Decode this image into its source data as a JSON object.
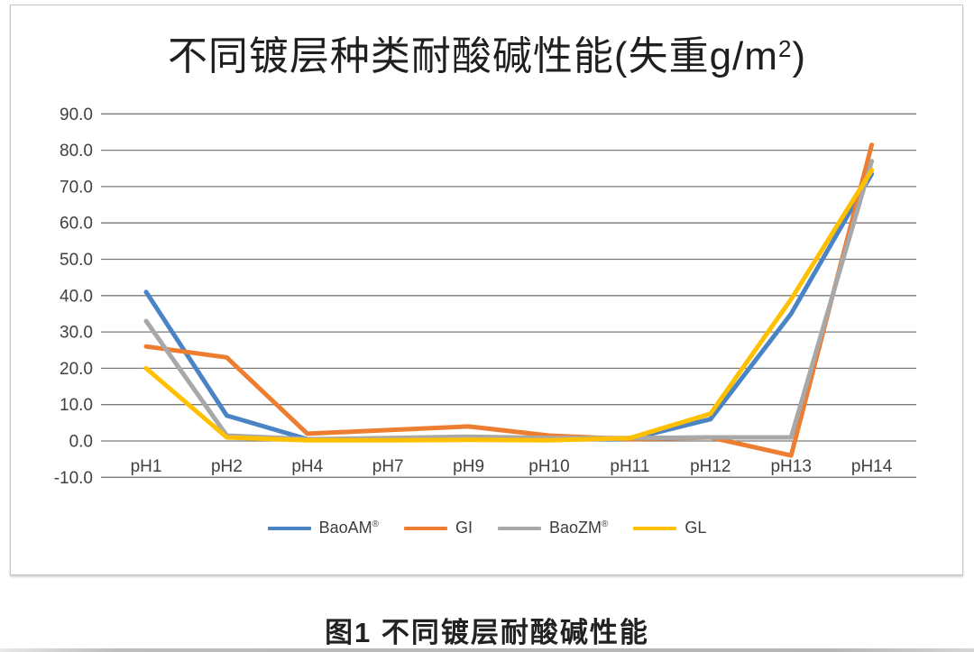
{
  "caption": "图1 不同镀层耐酸碱性能",
  "chart_data": {
    "type": "line",
    "title": "不同镀层种类耐酸碱性能(失重g/m²)",
    "title_parts": {
      "main": "不同镀层种类耐酸碱性能(失重g/m",
      "sup": "2",
      "close": ")"
    },
    "categories": [
      "pH1",
      "pH2",
      "pH4",
      "pH7",
      "pH9",
      "pH10",
      "pH11",
      "pH12",
      "pH13",
      "pH14"
    ],
    "series": [
      {
        "name": "BaoAM®",
        "label_main": "BaoAM",
        "label_sup": "®",
        "color": "#4B84C4",
        "values": [
          41,
          7,
          0.5,
          0.5,
          0.8,
          0.5,
          0.5,
          6,
          35,
          73.5
        ]
      },
      {
        "name": "GI",
        "label_main": "GI",
        "label_sup": "",
        "color": "#ED7D31",
        "values": [
          26,
          23,
          2,
          3,
          4,
          1.5,
          0.5,
          1,
          -4,
          81.5
        ]
      },
      {
        "name": "BaoZM®",
        "label_main": "BaoZM",
        "label_sup": "®",
        "color": "#A8A8A8",
        "values": [
          33,
          1.5,
          0.5,
          0.8,
          1.2,
          0.8,
          0.8,
          1,
          1,
          77
        ]
      },
      {
        "name": "GL",
        "label_main": "GL",
        "label_sup": "",
        "color": "#FFC000",
        "values": [
          20,
          1,
          0.2,
          0.2,
          0.3,
          0.2,
          0.8,
          7.5,
          39,
          74.5
        ]
      }
    ],
    "ylim": [
      -10,
      90
    ],
    "ytick_step": 10,
    "yticks": [
      "90.0",
      "80.0",
      "70.0",
      "60.0",
      "50.0",
      "40.0",
      "30.0",
      "20.0",
      "10.0",
      "0.0",
      "-10.0"
    ],
    "xlabel": "",
    "ylabel": "",
    "grid": true,
    "legend_position": "bottom",
    "gridline_color": "#7a7a7a",
    "axis_label_color": "#404040",
    "line_width": 5
  }
}
